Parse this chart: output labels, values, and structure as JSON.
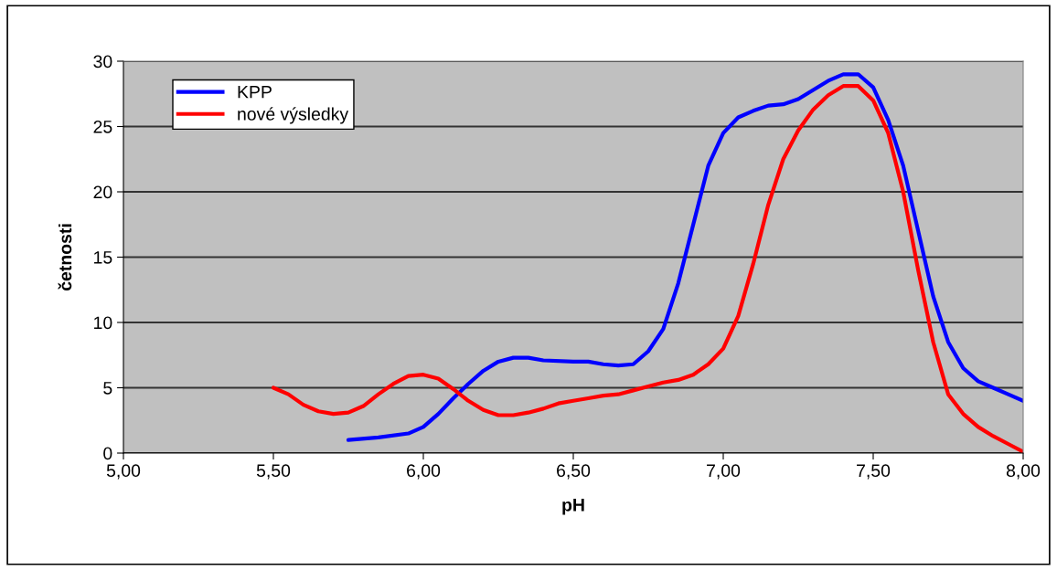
{
  "chart_data": {
    "type": "line",
    "xlabel": "pH",
    "ylabel": "četnosti",
    "xlim": [
      5,
      8
    ],
    "ylim": [
      0,
      30
    ],
    "xticks": [
      {
        "value": 5,
        "label": "5,00"
      },
      {
        "value": 5.5,
        "label": "5,50"
      },
      {
        "value": 6,
        "label": "6,00"
      },
      {
        "value": 6.5,
        "label": "6,50"
      },
      {
        "value": 7,
        "label": "7,00"
      },
      {
        "value": 7.5,
        "label": "7,50"
      },
      {
        "value": 8,
        "label": "8,00"
      }
    ],
    "yticks": [
      0,
      5,
      10,
      15,
      20,
      25,
      30
    ],
    "grid": "y",
    "legend": "top left",
    "line_style": "solid",
    "series": [
      {
        "name": "KPP",
        "color": "#0000ff",
        "x": [
          5.75,
          5.85,
          5.95,
          6.0,
          6.05,
          6.1,
          6.15,
          6.2,
          6.25,
          6.3,
          6.35,
          6.4,
          6.5,
          6.55,
          6.6,
          6.65,
          6.7,
          6.75,
          6.8,
          6.85,
          6.9,
          6.95,
          7.0,
          7.05,
          7.1,
          7.15,
          7.2,
          7.25,
          7.3,
          7.35,
          7.4,
          7.45,
          7.5,
          7.55,
          7.6,
          7.65,
          7.7,
          7.75,
          7.8,
          7.85,
          7.9,
          7.95,
          8.0
        ],
        "values": [
          1.0,
          1.2,
          1.5,
          2.0,
          3.0,
          4.2,
          5.3,
          6.3,
          7.0,
          7.3,
          7.3,
          7.1,
          7.0,
          7.0,
          6.8,
          6.7,
          6.8,
          7.8,
          9.5,
          13,
          17.5,
          22,
          24.5,
          25.7,
          26.2,
          26.6,
          26.7,
          27.1,
          27.8,
          28.5,
          29,
          29,
          28,
          25.5,
          22,
          17,
          12,
          8.5,
          6.5,
          5.5,
          5.0,
          4.5,
          4.0
        ]
      },
      {
        "name": "nové výsledky",
        "color": "#ff0000",
        "x": [
          5.5,
          5.55,
          5.6,
          5.65,
          5.7,
          5.75,
          5.8,
          5.85,
          5.9,
          5.95,
          6.0,
          6.05,
          6.1,
          6.15,
          6.2,
          6.25,
          6.3,
          6.35,
          6.4,
          6.45,
          6.5,
          6.55,
          6.6,
          6.65,
          6.7,
          6.75,
          6.8,
          6.85,
          6.9,
          6.95,
          7.0,
          7.05,
          7.1,
          7.15,
          7.2,
          7.25,
          7.3,
          7.35,
          7.4,
          7.45,
          7.5,
          7.55,
          7.6,
          7.65,
          7.7,
          7.75,
          7.8,
          7.85,
          7.9,
          7.95,
          8.0
        ],
        "values": [
          5,
          4.5,
          3.7,
          3.2,
          3.0,
          3.1,
          3.6,
          4.5,
          5.3,
          5.9,
          6.0,
          5.7,
          4.9,
          4.0,
          3.3,
          2.9,
          2.9,
          3.1,
          3.4,
          3.8,
          4.0,
          4.2,
          4.4,
          4.5,
          4.8,
          5.1,
          5.4,
          5.6,
          6.0,
          6.8,
          8.0,
          10.5,
          14.5,
          19,
          22.5,
          24.7,
          26.3,
          27.4,
          28.1,
          28.1,
          27,
          24.5,
          20,
          14,
          8.5,
          4.5,
          3.0,
          2.0,
          1.3,
          0.7,
          0.1
        ]
      }
    ]
  }
}
